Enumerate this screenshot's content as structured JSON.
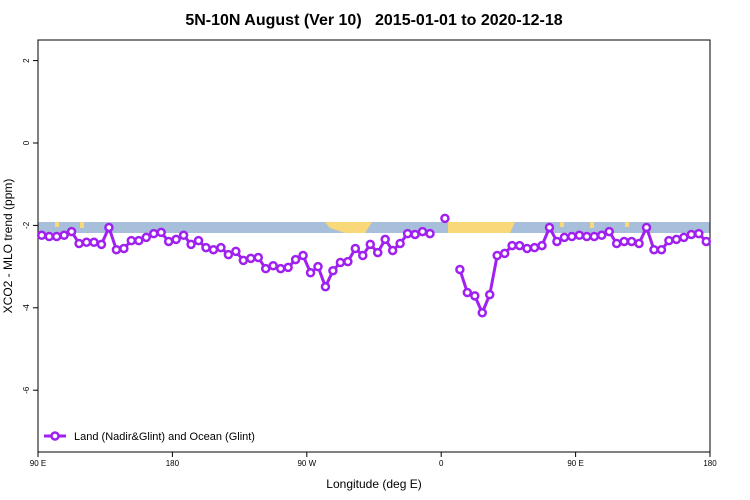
{
  "chart_data": {
    "type": "line",
    "title": "5N-10N August (Ver 10)   2015-01-01 to 2020-12-18",
    "x_label": "Longitude (deg E)",
    "y_label": "XCO2 - MLO trend (ppm)",
    "x": [
      92.5,
      97.5,
      102.5,
      107.5,
      112.5,
      117.5,
      122.5,
      127.5,
      132.5,
      137.5,
      142.5,
      147.5,
      152.5,
      157.5,
      162.5,
      167.5,
      172.5,
      177.5,
      182.5,
      187.5,
      192.5,
      197.5,
      202.5,
      207.5,
      212.5,
      217.5,
      222.5,
      227.5,
      232.5,
      237.5,
      242.5,
      247.5,
      252.5,
      257.5,
      262.5,
      267.5,
      272.5,
      277.5,
      282.5,
      287.5,
      292.5,
      297.5,
      302.5,
      307.5,
      312.5,
      317.5,
      322.5,
      327.5,
      332.5,
      337.5,
      342.5,
      347.5,
      352.5,
      357.5,
      362.5,
      367.5,
      372.5,
      377.5,
      382.5,
      387.5,
      392.5,
      397.5,
      402.5,
      407.5,
      412.5,
      417.5,
      422.5,
      427.5,
      432.5,
      437.5,
      442.5,
      447.5,
      452.5,
      457.5,
      462.5,
      467.5,
      472.5,
      477.5,
      482.5,
      487.5,
      492.5,
      497.5,
      502.5,
      507.5,
      512.5,
      517.5,
      522.5,
      527.5,
      532.5,
      537.5
    ],
    "series": [
      {
        "name": "Land (Nadir&Glint) and Ocean (Glint)",
        "color": "#a020f0",
        "values": [
          -2.24,
          -2.27,
          -2.27,
          -2.24,
          -2.15,
          -2.44,
          -2.41,
          -2.41,
          -2.46,
          -2.05,
          -2.59,
          -2.56,
          -2.37,
          -2.37,
          -2.29,
          -2.2,
          -2.17,
          -2.39,
          -2.34,
          -2.24,
          -2.46,
          -2.37,
          -2.54,
          -2.59,
          -2.54,
          -2.71,
          -2.63,
          -2.85,
          -2.8,
          -2.78,
          -3.05,
          -2.98,
          -3.05,
          -3.02,
          -2.83,
          -2.73,
          -3.15,
          -3.0,
          -3.49,
          -3.1,
          -2.9,
          -2.88,
          -2.56,
          -2.73,
          -2.46,
          -2.66,
          -2.34,
          -2.61,
          -2.44,
          -2.2,
          -2.22,
          -2.15,
          -2.2,
          null,
          -1.83,
          null,
          -3.07,
          -3.63,
          -3.71,
          -4.12,
          -3.68,
          -2.73,
          -2.68,
          -2.49,
          -2.49,
          -2.56,
          -2.54,
          -2.49,
          -2.05,
          -2.39,
          -2.29,
          -2.27,
          -2.24,
          -2.27,
          -2.27,
          -2.24,
          -2.15,
          -2.44,
          -2.39,
          -2.39,
          -2.44,
          -2.05,
          -2.59,
          -2.59,
          -2.37,
          -2.34,
          -2.29,
          -2.22,
          -2.2,
          -2.39
        ]
      }
    ],
    "xlim": [
      90,
      540
    ],
    "xticks": [
      {
        "value": 90,
        "label": "90 E"
      },
      180,
      {
        "value": 270,
        "label": "90 W"
      },
      {
        "value": 360,
        "label": "0"
      },
      {
        "value": 450,
        "label": "90 E"
      },
      {
        "value": 540,
        "label": "180"
      }
    ],
    "ylim": [
      -7.5,
      2.5
    ],
    "yticks": [
      -6,
      -4,
      -2,
      0,
      2
    ],
    "legend": "bottom-left"
  }
}
